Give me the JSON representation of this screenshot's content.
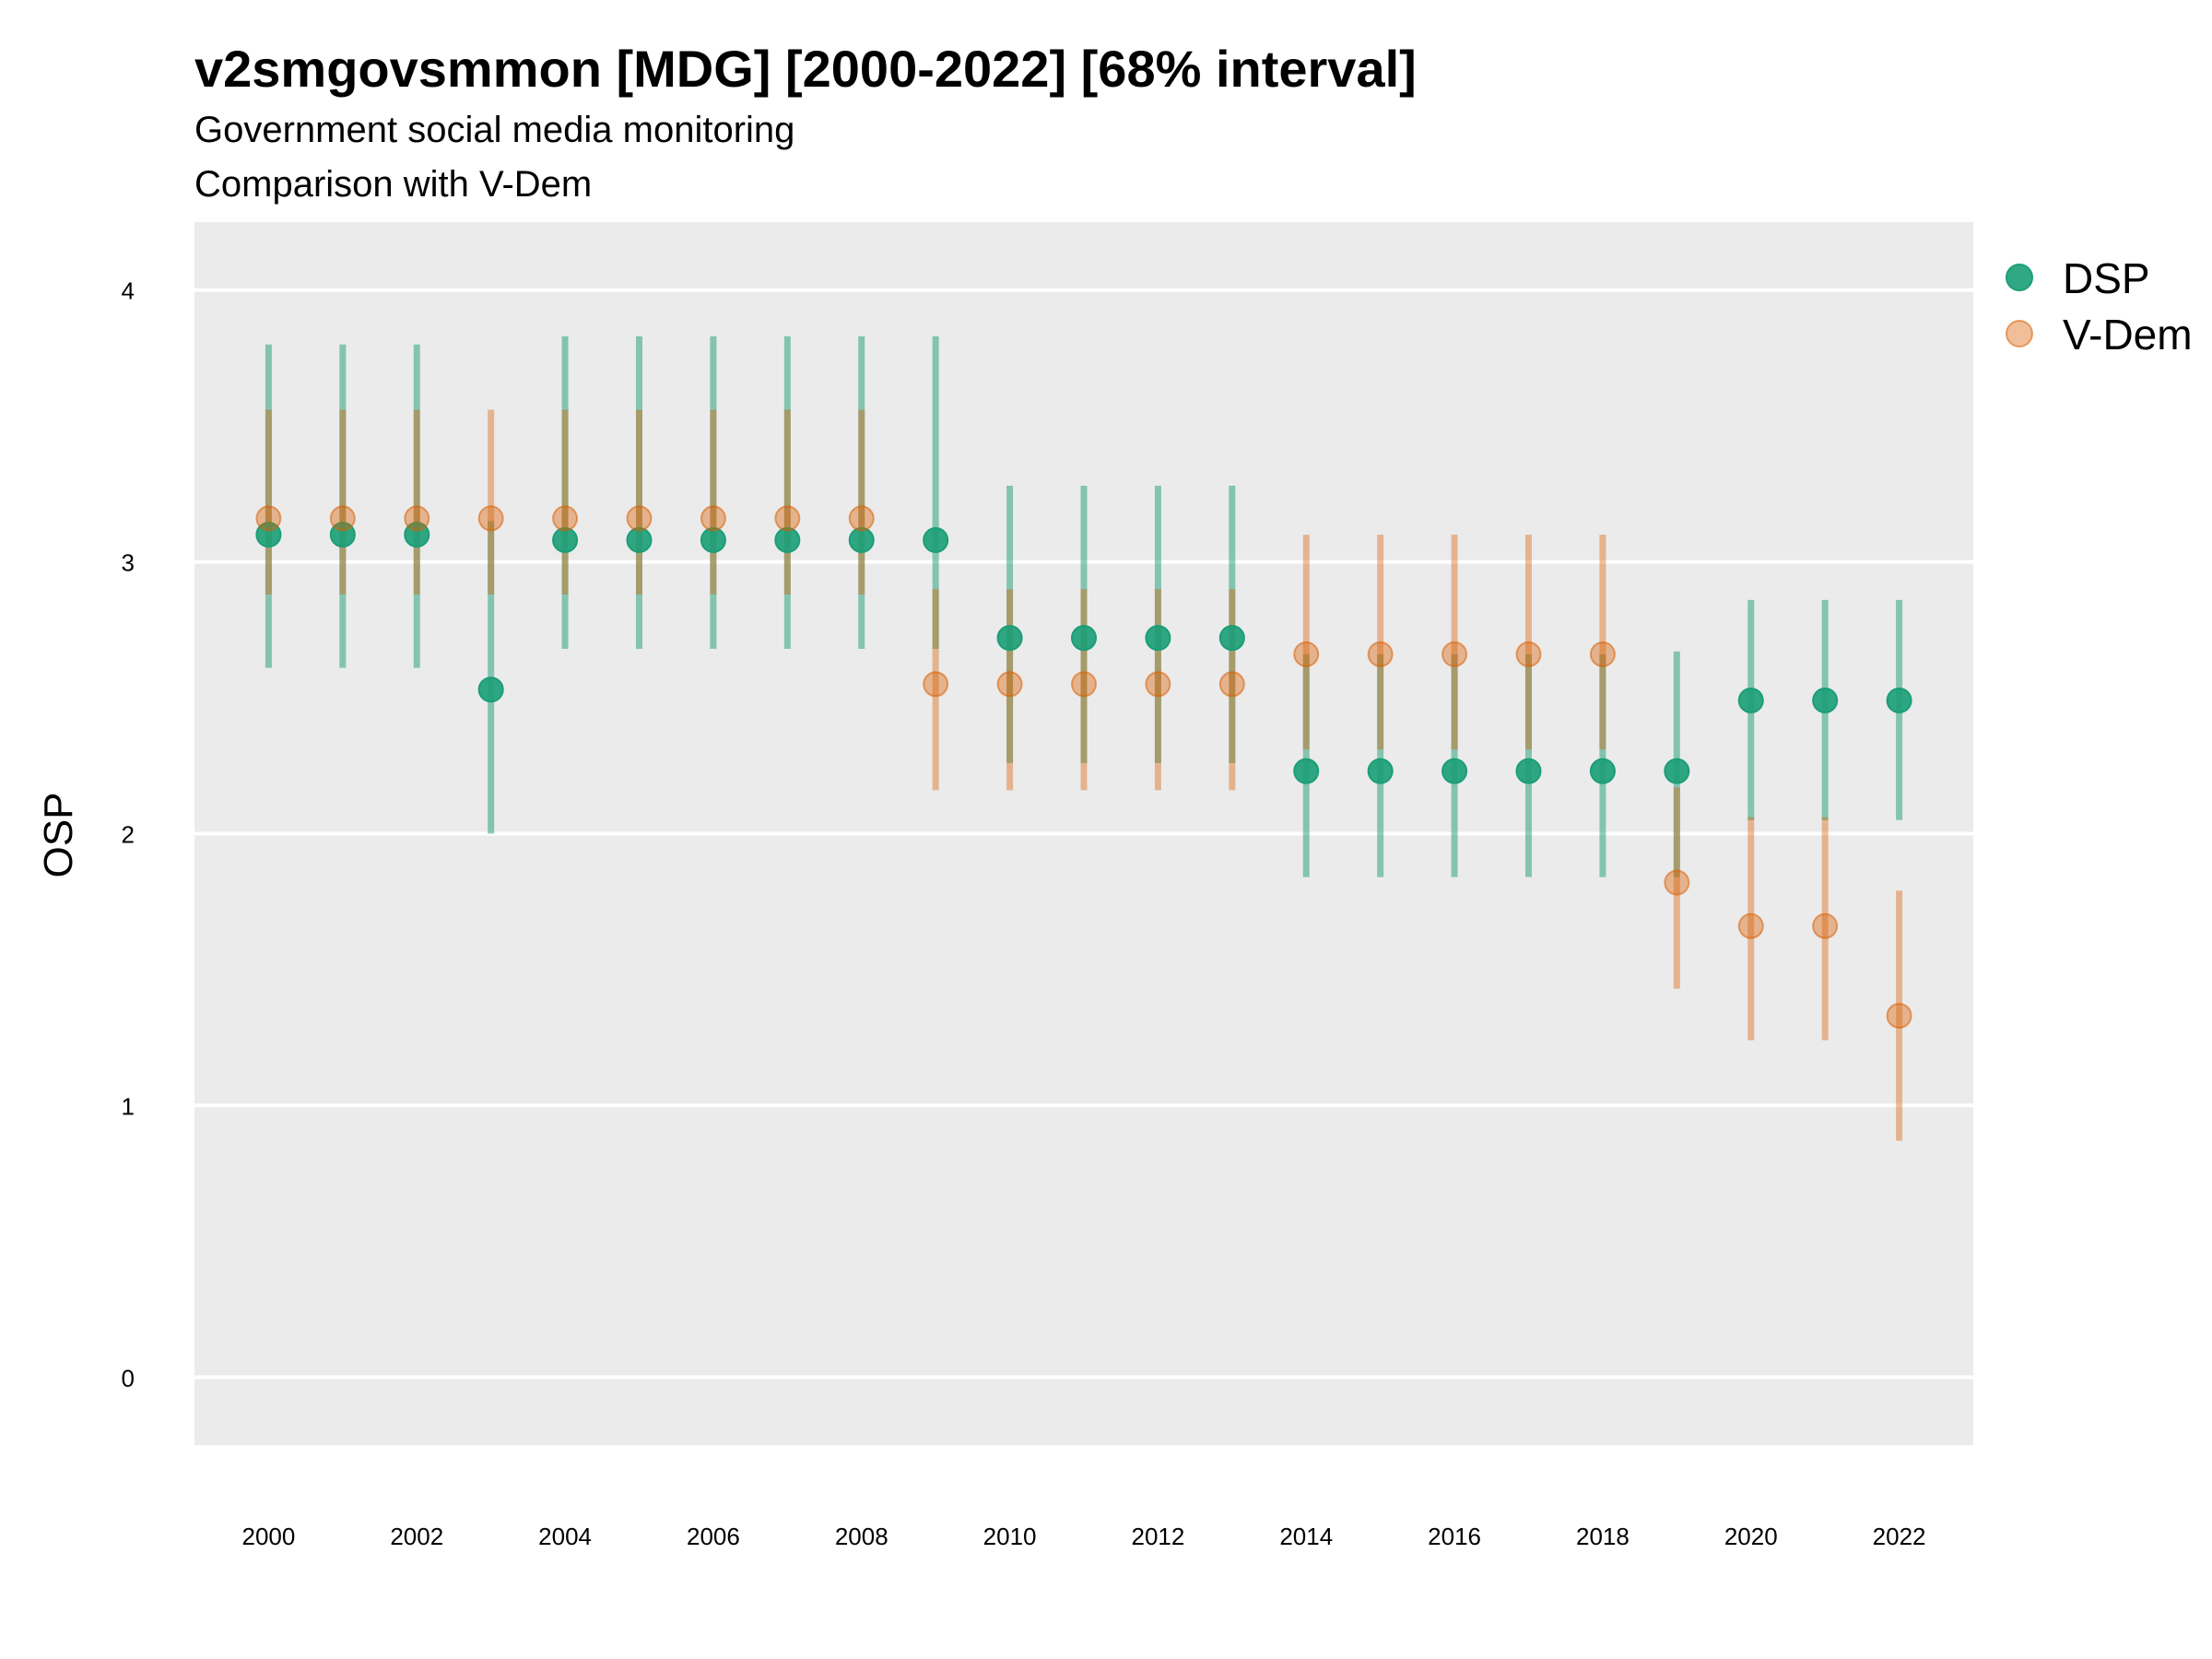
{
  "chart_data": {
    "type": "scatter",
    "title": "v2smgovsmmon [MDG] [2000-2022] [68% interval]",
    "subtitle_lines": [
      "Government social media monitoring",
      "Comparison with V-Dem"
    ],
    "xlabel": "",
    "ylabel": "OSP",
    "xlim": [
      1999.0,
      2023.0
    ],
    "ylim": [
      -0.25,
      4.25
    ],
    "x_ticks": [
      2000,
      2002,
      2004,
      2006,
      2008,
      2010,
      2012,
      2014,
      2016,
      2018,
      2020,
      2022
    ],
    "y_ticks": [
      0,
      1,
      2,
      3,
      4
    ],
    "grid": true,
    "legend_position": "top-right",
    "background_color": "#ebebeb",
    "gridline_color": "#ffffff",
    "series": [
      {
        "name": "DSP",
        "color": "#1b9e77",
        "marker_opacity": 0.9,
        "interval_opacity": 0.5,
        "x": [
          2000,
          2001,
          2002,
          2003,
          2004,
          2005,
          2006,
          2007,
          2008,
          2009,
          2010,
          2011,
          2012,
          2013,
          2014,
          2015,
          2016,
          2017,
          2018,
          2019,
          2020,
          2021,
          2022
        ],
        "y": [
          3.1,
          3.1,
          3.1,
          2.53,
          3.08,
          3.08,
          3.08,
          3.08,
          3.08,
          3.08,
          2.72,
          2.72,
          2.72,
          2.72,
          2.23,
          2.23,
          2.23,
          2.23,
          2.23,
          2.23,
          2.49,
          2.49,
          2.49
        ],
        "lower": [
          2.61,
          2.61,
          2.61,
          2.0,
          2.68,
          2.68,
          2.68,
          2.68,
          2.68,
          2.68,
          2.26,
          2.26,
          2.26,
          2.26,
          1.84,
          1.84,
          1.84,
          1.84,
          1.84,
          1.84,
          2.05,
          2.05,
          2.05
        ],
        "upper": [
          3.8,
          3.8,
          3.8,
          3.15,
          3.83,
          3.83,
          3.83,
          3.83,
          3.83,
          3.83,
          3.28,
          3.28,
          3.28,
          3.28,
          2.66,
          2.66,
          2.66,
          2.66,
          2.66,
          2.67,
          2.86,
          2.86,
          2.86
        ]
      },
      {
        "name": "V-Dem",
        "color": "#d95f02",
        "marker_opacity": 0.4,
        "interval_opacity": 0.4,
        "x": [
          2000,
          2001,
          2002,
          2003,
          2004,
          2005,
          2006,
          2007,
          2008,
          2009,
          2010,
          2011,
          2012,
          2013,
          2014,
          2015,
          2016,
          2017,
          2018,
          2019,
          2020,
          2021,
          2022
        ],
        "y": [
          3.16,
          3.16,
          3.16,
          3.16,
          3.16,
          3.16,
          3.16,
          3.16,
          3.16,
          2.55,
          2.55,
          2.55,
          2.55,
          2.55,
          2.66,
          2.66,
          2.66,
          2.66,
          2.66,
          1.82,
          1.66,
          1.66,
          1.33
        ],
        "lower": [
          2.88,
          2.88,
          2.88,
          2.88,
          2.88,
          2.88,
          2.88,
          2.88,
          2.88,
          2.16,
          2.16,
          2.16,
          2.16,
          2.16,
          2.31,
          2.31,
          2.31,
          2.31,
          2.31,
          1.43,
          1.24,
          1.24,
          0.87
        ],
        "upper": [
          3.56,
          3.56,
          3.56,
          3.56,
          3.56,
          3.56,
          3.56,
          3.56,
          3.56,
          2.9,
          2.9,
          2.9,
          2.9,
          2.9,
          3.1,
          3.1,
          3.1,
          3.1,
          3.1,
          2.17,
          2.06,
          2.06,
          1.79
        ]
      }
    ]
  }
}
